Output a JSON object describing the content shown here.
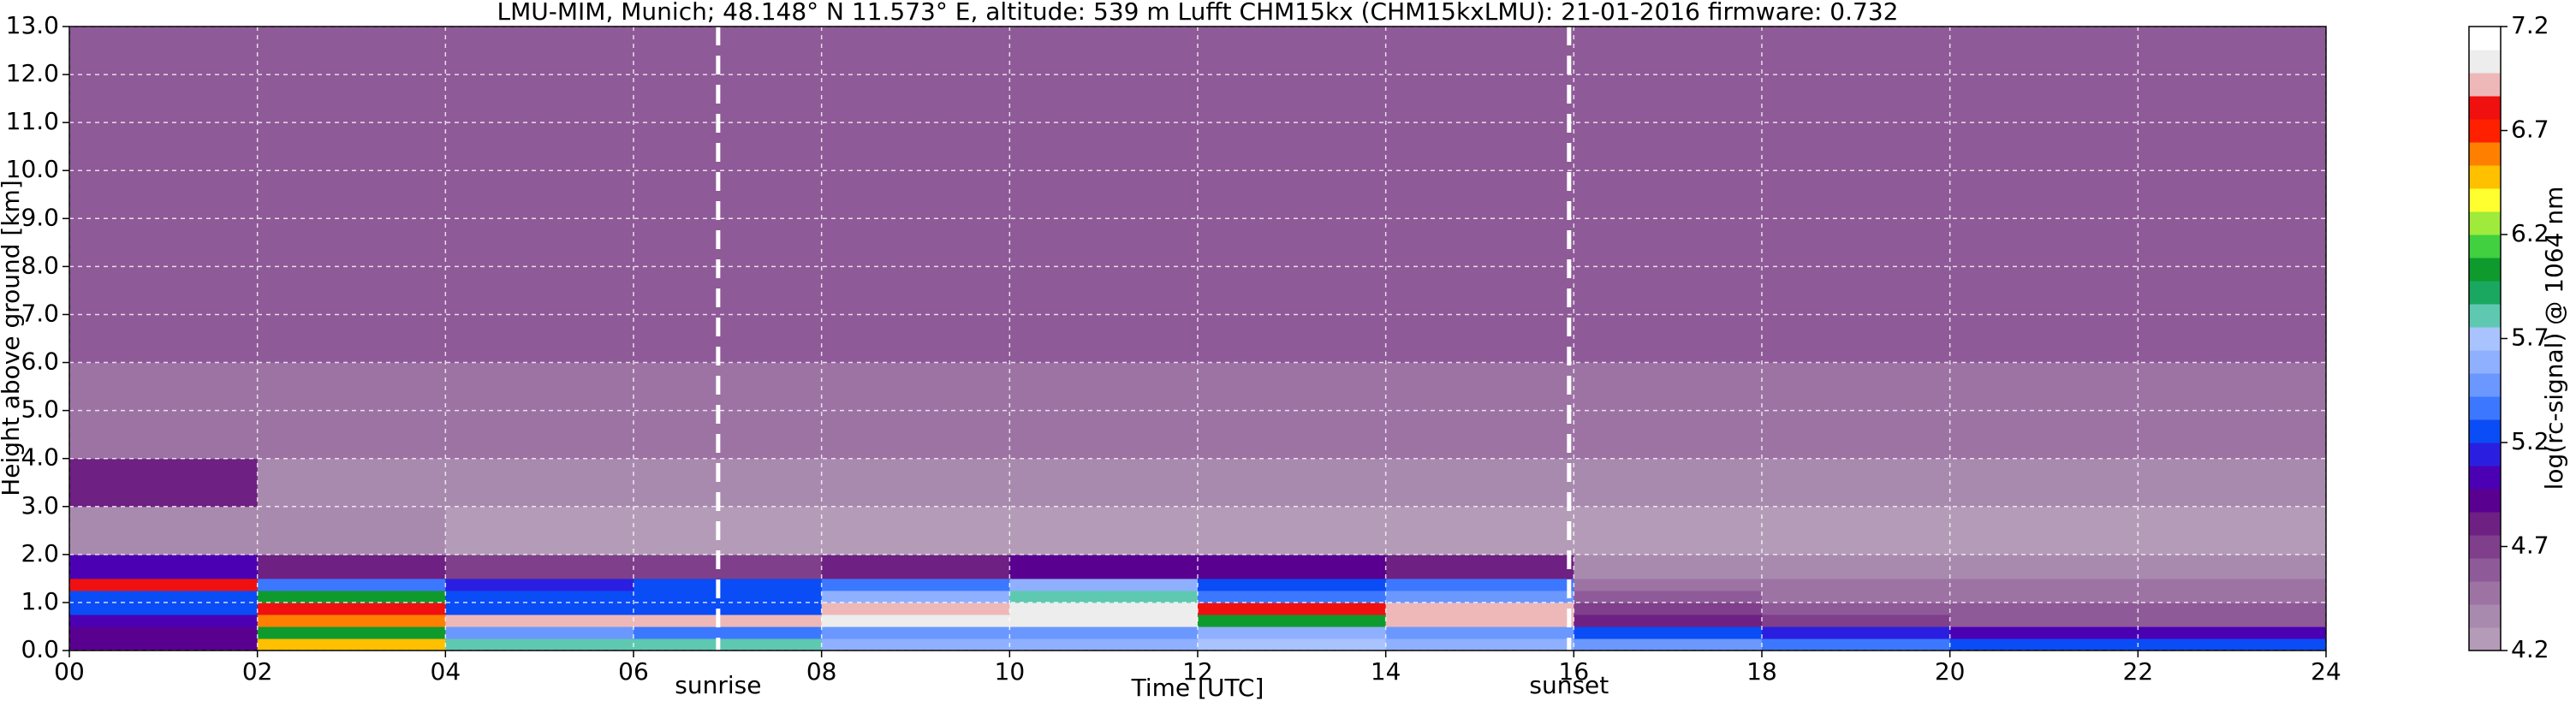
{
  "chart_data": {
    "type": "heatmap",
    "title": "LMU-MIM, Munich; 48.148° N 11.573° E, altitude: 539 m    Lufft CHM15kx (CHM15kxLMU): 21-01-2016    firmware: 0.732",
    "xlabel": "Time [UTC]",
    "ylabel": "Height above ground [km]",
    "colorbar_label": "log(rc-signal) @ 1064 nm",
    "x_edges": [
      0,
      2,
      4,
      6,
      8,
      10,
      12,
      14,
      16,
      18,
      20,
      22,
      24
    ],
    "y_edges": [
      0,
      0.25,
      0.5,
      0.75,
      1,
      1.25,
      1.5,
      2,
      3,
      4,
      6,
      13
    ],
    "z": [
      [
        4.9,
        6.5,
        5.8,
        5.8,
        5.6,
        5.6,
        5.7,
        5.6,
        5.5,
        5.4,
        5.3,
        5.3
      ],
      [
        4.9,
        6.0,
        5.5,
        5.4,
        5.5,
        5.5,
        5.6,
        5.5,
        5.3,
        5.1,
        5.0,
        5.0
      ],
      [
        5.0,
        6.6,
        6.9,
        6.9,
        7.0,
        7.0,
        6.0,
        6.9,
        4.8,
        4.7,
        4.6,
        4.6
      ],
      [
        5.2,
        6.8,
        5.2,
        5.2,
        6.9,
        7.0,
        6.8,
        6.9,
        4.7,
        4.6,
        4.6,
        4.6
      ],
      [
        5.3,
        6.0,
        5.3,
        5.3,
        5.6,
        5.8,
        5.4,
        5.5,
        4.6,
        4.5,
        4.5,
        4.5
      ],
      [
        6.8,
        5.4,
        5.1,
        5.2,
        5.4,
        5.6,
        5.3,
        5.4,
        4.5,
        4.5,
        4.5,
        4.5
      ],
      [
        5.0,
        4.8,
        4.7,
        4.7,
        4.8,
        4.9,
        4.9,
        4.8,
        4.4,
        4.4,
        4.4,
        4.4
      ],
      [
        4.4,
        4.4,
        4.3,
        4.3,
        4.3,
        4.3,
        4.3,
        4.3,
        4.3,
        4.3,
        4.3,
        4.3
      ],
      [
        4.8,
        4.4,
        4.4,
        4.4,
        4.4,
        4.4,
        4.4,
        4.4,
        4.4,
        4.4,
        4.4,
        4.4
      ],
      [
        4.5,
        4.5,
        4.5,
        4.5,
        4.5,
        4.5,
        4.5,
        4.5,
        4.5,
        4.5,
        4.5,
        4.5
      ],
      [
        4.6,
        4.6,
        4.6,
        4.6,
        4.6,
        4.6,
        4.6,
        4.6,
        4.6,
        4.6,
        4.6,
        4.6
      ]
    ],
    "xlim": [
      0,
      24
    ],
    "ylim": [
      0,
      13
    ],
    "zlim": [
      4.2,
      7.2
    ],
    "xticks": [
      {
        "value": 0,
        "label": "00"
      },
      {
        "value": 2,
        "label": "02"
      },
      {
        "value": 4,
        "label": "04"
      },
      {
        "value": 6,
        "label": "06"
      },
      {
        "value": 8,
        "label": "08"
      },
      {
        "value": 10,
        "label": "10"
      },
      {
        "value": 12,
        "label": "12"
      },
      {
        "value": 14,
        "label": "14"
      },
      {
        "value": 16,
        "label": "16"
      },
      {
        "value": 18,
        "label": "18"
      },
      {
        "value": 20,
        "label": "20"
      },
      {
        "value": 22,
        "label": "22"
      },
      {
        "value": 24,
        "label": "24"
      }
    ],
    "yticks": [
      {
        "value": 0,
        "label": "0.0"
      },
      {
        "value": 1,
        "label": "1.0"
      },
      {
        "value": 2,
        "label": "2.0"
      },
      {
        "value": 3,
        "label": "3.0"
      },
      {
        "value": 4,
        "label": "4.0"
      },
      {
        "value": 5,
        "label": "5.0"
      },
      {
        "value": 6,
        "label": "6.0"
      },
      {
        "value": 7,
        "label": "7.0"
      },
      {
        "value": 8,
        "label": "8.0"
      },
      {
        "value": 9,
        "label": "9.0"
      },
      {
        "value": 10,
        "label": "10.0"
      },
      {
        "value": 11,
        "label": "11.0"
      },
      {
        "value": 12,
        "label": "12.0"
      },
      {
        "value": 13,
        "label": "13.0"
      }
    ],
    "zticks": [
      4.2,
      4.7,
      5.2,
      5.7,
      6.2,
      6.7,
      7.2
    ],
    "colorscale": [
      "#b49cb8",
      "#a98aaf",
      "#9d73a4",
      "#8f5a98",
      "#7f3f8b",
      "#6e2083",
      "#5a0090",
      "#4b00b4",
      "#2a1fe0",
      "#0a4cf5",
      "#3c78ff",
      "#6a98ff",
      "#8fb0ff",
      "#a9c3ff",
      "#5ec9b0",
      "#1aa860",
      "#0f9a2e",
      "#40d040",
      "#9fea3a",
      "#ffff30",
      "#ffc000",
      "#ff8000",
      "#ff2000",
      "#f01010",
      "#eeb8b8",
      "#ededed",
      "#ffffff"
    ],
    "grid": true,
    "annotations": [
      {
        "x": 6.9,
        "text": "sunrise"
      },
      {
        "x": 15.95,
        "text": "sunset"
      }
    ]
  }
}
